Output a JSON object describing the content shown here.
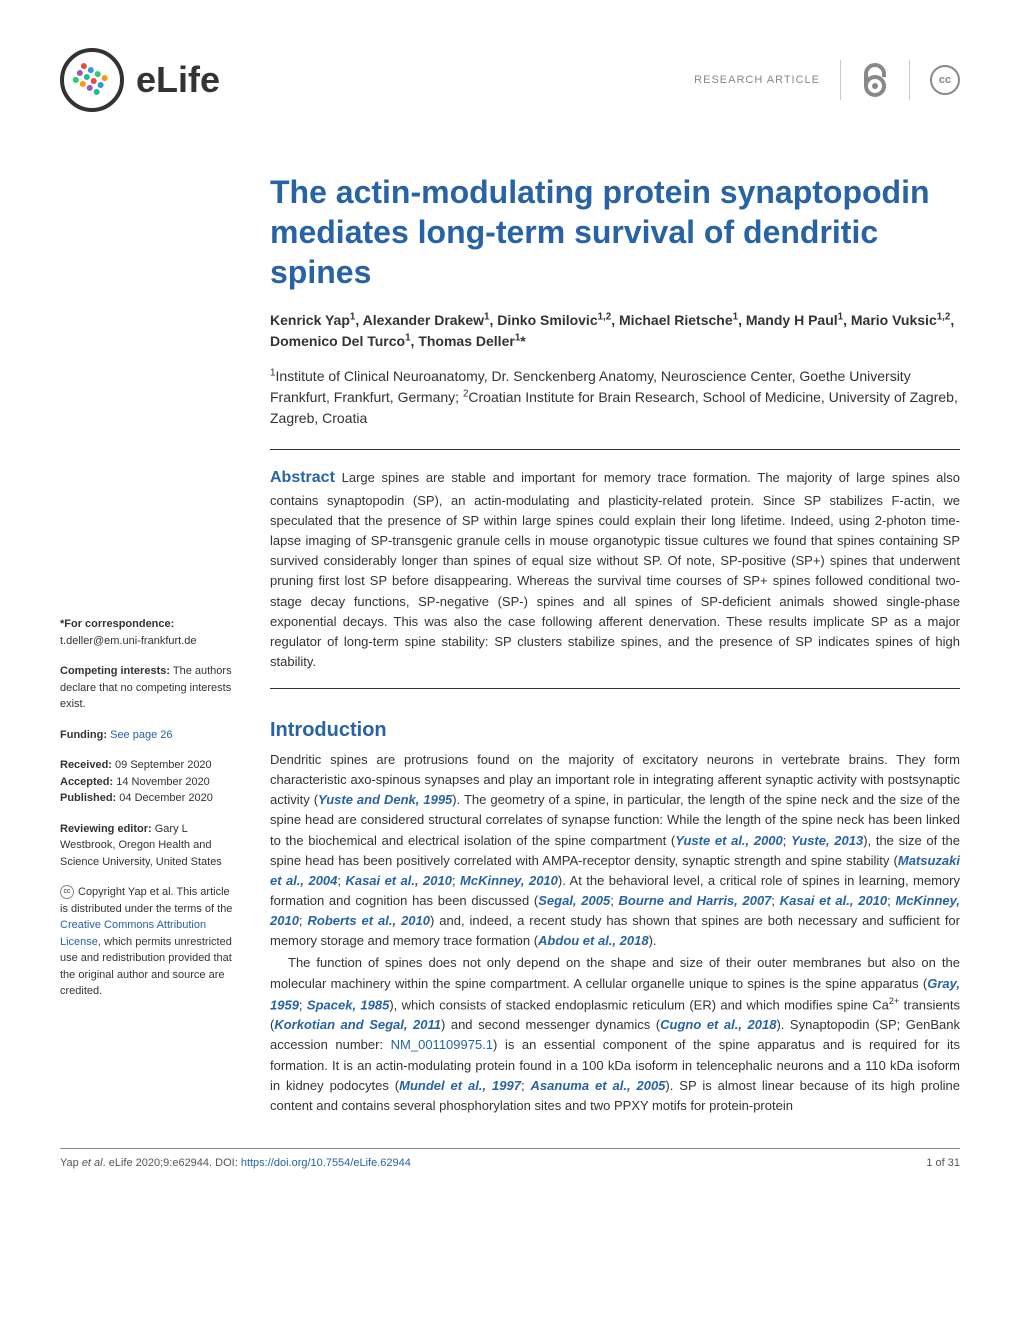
{
  "header": {
    "journal": "eLife",
    "article_type": "RESEARCH ARTICLE",
    "oa_symbol": "∂",
    "cc_symbol": "cc"
  },
  "title": "The actin-modulating protein synaptopodin mediates long-term survival of dendritic spines",
  "authors_html": "Kenrick Yap<sup>1</sup>, Alexander Drakew<sup>1</sup>, Dinko Smilovic<sup>1,2</sup>, Michael Rietsche<sup>1</sup>, Mandy H Paul<sup>1</sup>, Mario Vuksic<sup>1,2</sup>, Domenico Del Turco<sup>1</sup>, Thomas Deller<sup>1</sup>*",
  "affiliations_html": "<sup>1</sup>Institute of Clinical Neuroanatomy, Dr. Senckenberg Anatomy, Neuroscience Center, Goethe University Frankfurt, Frankfurt, Germany; <sup>2</sup>Croatian Institute for Brain Research, School of Medicine, University of Zagreb, Zagreb, Croatia",
  "abstract": {
    "label": "Abstract",
    "text": "Large spines are stable and important for memory trace formation. The majority of large spines also contains synaptopodin (SP), an actin-modulating and plasticity-related protein. Since SP stabilizes F-actin, we speculated that the presence of SP within large spines could explain their long lifetime. Indeed, using 2-photon time-lapse imaging of SP-transgenic granule cells in mouse organotypic tissue cultures we found that spines containing SP survived considerably longer than spines of equal size without SP. Of note, SP-positive (SP+) spines that underwent pruning first lost SP before disappearing. Whereas the survival time courses of SP+ spines followed conditional two-stage decay functions, SP-negative (SP-) spines and all spines of SP-deficient animals showed single-phase exponential decays. This was also the case following afferent denervation. These results implicate SP as a major regulator of long-term spine stability: SP clusters stabilize spines, and the presence of SP indicates spines of high stability."
  },
  "introduction": {
    "heading": "Introduction",
    "p1_html": "Dendritic spines are protrusions found on the majority of excitatory neurons in vertebrate brains. They form characteristic axo-spinous synapses and play an important role in integrating afferent synaptic activity with postsynaptic activity (<span class='ref'>Yuste and Denk, 1995</span>). The geometry of a spine, in particular, the length of the spine neck and the size of the spine head are considered structural correlates of synapse function: While the length of the spine neck has been linked to the biochemical and electrical isolation of the spine compartment (<span class='ref'>Yuste et al., 2000</span>; <span class='ref'>Yuste, 2013</span>), the size of the spine head has been positively correlated with AMPA-receptor density, synaptic strength and spine stability (<span class='ref'>Matsuzaki et al., 2004</span>; <span class='ref'>Kasai et al., 2010</span>; <span class='ref'>McKinney, 2010</span>). At the behavioral level, a critical role of spines in learning, memory formation and cognition has been discussed (<span class='ref'>Segal, 2005</span>; <span class='ref'>Bourne and Harris, 2007</span>; <span class='ref'>Kasai et al., 2010</span>; <span class='ref'>McKinney, 2010</span>; <span class='ref'>Roberts et al., 2010</span>) and, indeed, a recent study has shown that spines are both necessary and sufficient for memory storage and memory trace formation (<span class='ref'>Abdou et al., 2018</span>).",
    "p2_html": "The function of spines does not only depend on the shape and size of their outer membranes but also on the molecular machinery within the spine compartment. A cellular organelle unique to spines is the spine apparatus (<span class='ref'>Gray, 1959</span>; <span class='ref'>Spacek, 1985</span>), which consists of stacked endoplasmic reticulum (ER) and which modifies spine Ca<sup>2+</sup> transients (<span class='ref'>Korkotian and Segal, 2011</span>) and second messenger dynamics (<span class='ref'>Cugno et al., 2018</span>). Synaptopodin (SP; GenBank accession number: <span class='link'>NM_001109975.1</span>) is an essential component of the spine apparatus and is required for its formation. It is an actin-modulating protein found in a 100 kDa isoform in telencephalic neurons and a 110 kDa isoform in kidney podocytes (<span class='ref'>Mundel et al., 1997</span>; <span class='ref'>Asanuma et al., 2005</span>). SP is almost linear because of its high proline content and contains several phosphorylation sites and two PPXY motifs for protein-protein"
  },
  "sidebar": {
    "correspondence_label": "*For correspondence:",
    "correspondence_email": "t.deller@em.uni-frankfurt.de",
    "competing_label": "Competing interests:",
    "competing_text": " The authors declare that no competing interests exist.",
    "funding_label": "Funding:",
    "funding_link": " See page 26",
    "received_label": "Received:",
    "received_date": " 09 September 2020",
    "accepted_label": "Accepted:",
    "accepted_date": " 14 November 2020",
    "published_label": "Published:",
    "published_date": " 04 December 2020",
    "editor_label": "Reviewing editor:",
    "editor_text": "  Gary L Westbrook, Oregon Health and Science University, United States",
    "copyright_html": "Copyright Yap et al. This article is distributed under the terms of the <span class='link'>Creative Commons Attribution License,</span> which permits unrestricted use and redistribution provided that the original author and source are credited."
  },
  "footer": {
    "citation_html": "Yap <i>et al</i>. eLife 2020;9:e62944. DOI: <span class='link'>https://doi.org/10.7554/eLife.62944</span>",
    "page": "1 of 31"
  },
  "colors": {
    "heading": "#2763a5",
    "text": "#333333",
    "muted": "#888888",
    "logo_colors": [
      "#e74c3c",
      "#3498db",
      "#2ecc71",
      "#f39c12",
      "#9b59b6",
      "#1abc9c"
    ]
  }
}
